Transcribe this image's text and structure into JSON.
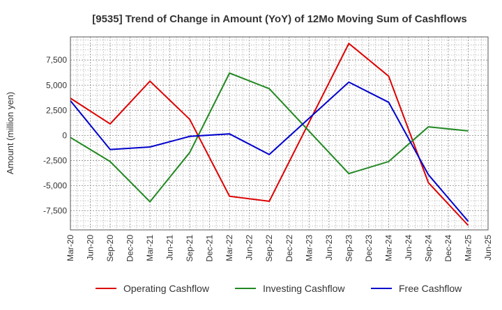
{
  "chart_data": {
    "type": "line",
    "title": "[9535]  Trend of Change in Amount (YoY) of 12Mo Moving Sum of Cashflows",
    "xlabel": "",
    "ylabel": "Amount (million yen)",
    "ylim": [
      -9400,
      9800
    ],
    "y_ticks": [
      7500,
      5000,
      2500,
      0,
      -2500,
      -5000,
      -7500
    ],
    "y_tick_labels": [
      "7,500",
      "5,000",
      "2,500",
      "0",
      "-2,500",
      "-5,000",
      "-7,500"
    ],
    "x_ticks": [
      "Mar-20",
      "Jun-20",
      "Sep-20",
      "Dec-20",
      "Mar-21",
      "Jun-21",
      "Sep-21",
      "Dec-21",
      "Mar-22",
      "Jun-22",
      "Sep-22",
      "Dec-22",
      "Mar-23",
      "Jun-23",
      "Sep-23",
      "Dec-23",
      "Mar-24",
      "Jun-24",
      "Sep-24",
      "Dec-24",
      "Mar-25",
      "Jun-25"
    ],
    "grid": true,
    "legend_position": "bottom",
    "series": [
      {
        "name": "Operating Cashflow",
        "color": "#dd0000",
        "points": [
          {
            "x": "Mar-20",
            "y": 3700
          },
          {
            "x": "Sep-20",
            "y": 1150
          },
          {
            "x": "Mar-21",
            "y": 5400
          },
          {
            "x": "Sep-21",
            "y": 1600
          },
          {
            "x": "Mar-22",
            "y": -6050
          },
          {
            "x": "Sep-22",
            "y": -6550
          },
          {
            "x": "Sep-23",
            "y": 9150
          },
          {
            "x": "Mar-24",
            "y": 5900
          },
          {
            "x": "Sep-24",
            "y": -4700
          },
          {
            "x": "Mar-25",
            "y": -8950
          }
        ]
      },
      {
        "name": "Investing Cashflow",
        "color": "#228822",
        "points": [
          {
            "x": "Mar-20",
            "y": -200
          },
          {
            "x": "Sep-20",
            "y": -2600
          },
          {
            "x": "Mar-21",
            "y": -6600
          },
          {
            "x": "Sep-21",
            "y": -1700
          },
          {
            "x": "Mar-22",
            "y": 6200
          },
          {
            "x": "Sep-22",
            "y": 4650
          },
          {
            "x": "Sep-23",
            "y": -3800
          },
          {
            "x": "Mar-24",
            "y": -2600
          },
          {
            "x": "Sep-24",
            "y": 850
          },
          {
            "x": "Mar-25",
            "y": 450
          }
        ]
      },
      {
        "name": "Free Cashflow",
        "color": "#0000cc",
        "points": [
          {
            "x": "Mar-20",
            "y": 3450
          },
          {
            "x": "Sep-20",
            "y": -1400
          },
          {
            "x": "Mar-21",
            "y": -1150
          },
          {
            "x": "Sep-21",
            "y": -100
          },
          {
            "x": "Mar-22",
            "y": 150
          },
          {
            "x": "Sep-22",
            "y": -1900
          },
          {
            "x": "Sep-23",
            "y": 5300
          },
          {
            "x": "Mar-24",
            "y": 3300
          },
          {
            "x": "Sep-24",
            "y": -3900
          },
          {
            "x": "Mar-25",
            "y": -8550
          }
        ]
      }
    ]
  }
}
